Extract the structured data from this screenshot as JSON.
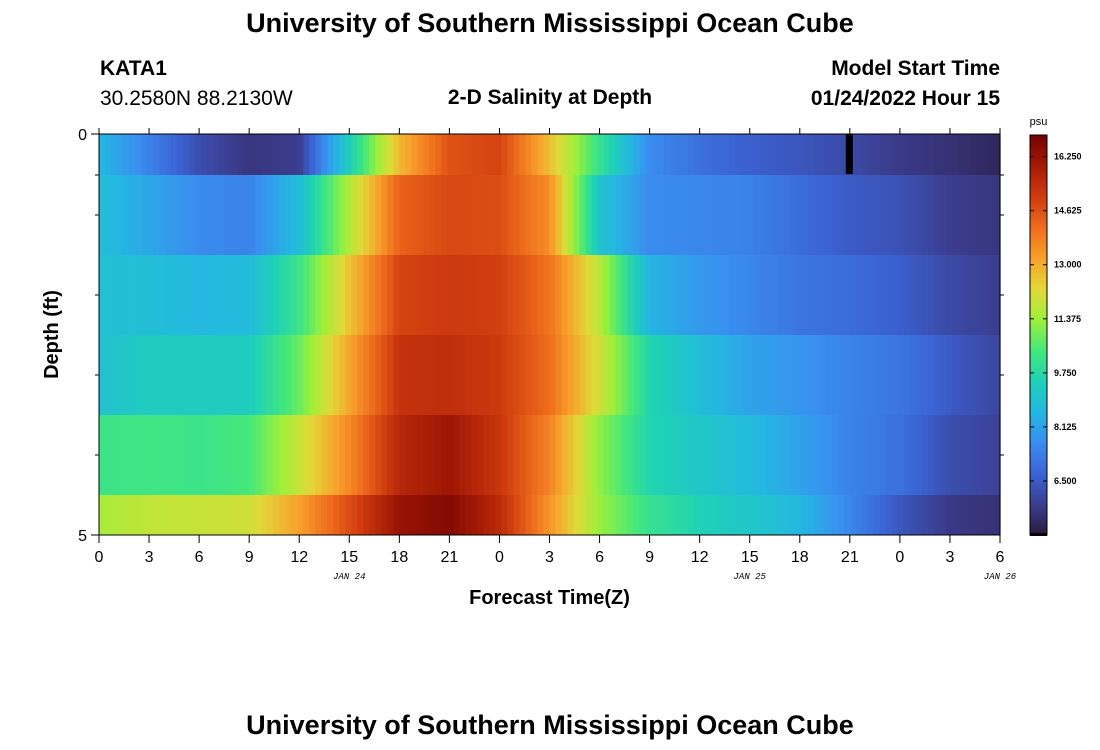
{
  "header": {
    "title": "University of Southern Mississippi Ocean Cube",
    "station": "KATA1",
    "coords": "30.2580N  88.2130W",
    "subtitle": "2-D Salinity at Depth",
    "model_start_label": "Model Start Time",
    "model_start_value": "01/24/2022 Hour 15"
  },
  "footer": {
    "title": "University of Southern Mississippi Ocean Cube"
  },
  "chart_data": {
    "type": "heatmap",
    "xlabel": "Forecast Time(Z)",
    "ylabel": "Depth (ft)",
    "ylim": [
      0,
      5
    ],
    "y_ticks": [
      "0",
      "5"
    ],
    "x_tick_labels": [
      "0",
      "3",
      "6",
      "9",
      "12",
      "15",
      "18",
      "21",
      "0",
      "3",
      "6",
      "9",
      "12",
      "15",
      "18",
      "21",
      "0",
      "3",
      "6"
    ],
    "date_labels": [
      {
        "text": "JAN 24",
        "at_hour": 15
      },
      {
        "text": "JAN 25",
        "at_hour": 39
      },
      {
        "text": "JAN 26",
        "at_hour": 54
      }
    ],
    "x_hours": [
      0,
      3,
      6,
      9,
      12,
      15,
      18,
      21,
      24,
      27,
      30,
      33,
      36,
      39,
      42,
      45,
      48,
      51,
      54
    ],
    "depth_rows": [
      0,
      1,
      2,
      3,
      4,
      5
    ],
    "salinity_psu": [
      [
        8.6,
        7.4,
        6.2,
        5.6,
        5.8,
        9.4,
        12.8,
        14.6,
        14.9,
        12.7,
        10.1,
        7.6,
        7.0,
        6.6,
        6.4,
        6.1,
        5.7,
        5.5,
        5.2
      ],
      [
        8.8,
        8.2,
        7.6,
        7.4,
        8.8,
        11.6,
        14.3,
        14.8,
        14.7,
        13.5,
        9.0,
        7.6,
        7.5,
        7.4,
        6.9,
        6.5,
        6.3,
        5.8,
        5.6
      ],
      [
        8.9,
        8.8,
        8.6,
        8.7,
        10.2,
        12.6,
        14.9,
        15.1,
        15.0,
        14.0,
        11.7,
        8.5,
        7.9,
        7.5,
        7.1,
        6.9,
        6.6,
        6.1,
        5.8
      ],
      [
        8.9,
        9.3,
        9.3,
        9.3,
        10.8,
        13.1,
        15.3,
        15.4,
        15.1,
        14.1,
        12.0,
        9.6,
        8.8,
        8.1,
        7.8,
        7.4,
        7.1,
        6.5,
        6.0
      ],
      [
        10.2,
        10.3,
        10.2,
        10.4,
        11.9,
        13.6,
        15.6,
        16.1,
        15.2,
        13.7,
        11.2,
        9.6,
        9.1,
        8.7,
        8.1,
        7.4,
        7.0,
        6.2,
        5.9
      ],
      [
        11.5,
        11.8,
        11.9,
        12.0,
        13.2,
        14.7,
        16.2,
        16.6,
        15.5,
        13.4,
        11.3,
        10.1,
        9.5,
        9.1,
        8.6,
        7.5,
        6.4,
        5.7,
        5.5
      ]
    ],
    "colorbar": {
      "unit": "psu",
      "min": 4.875,
      "max": 16.9,
      "ticks": [
        "6.500",
        "8.125",
        "9.750",
        "11.375",
        "13.000",
        "14.625",
        "16.250"
      ]
    },
    "colors": [
      "#2a1a3e",
      "#3b3d8f",
      "#3b64d6",
      "#3a8ef0",
      "#24b7e1",
      "#1fd2b5",
      "#46e87a",
      "#9ef03a",
      "#e2d839",
      "#f8a02c",
      "#ee6c1c",
      "#cf3b0f",
      "#a41a05",
      "#730202"
    ]
  }
}
